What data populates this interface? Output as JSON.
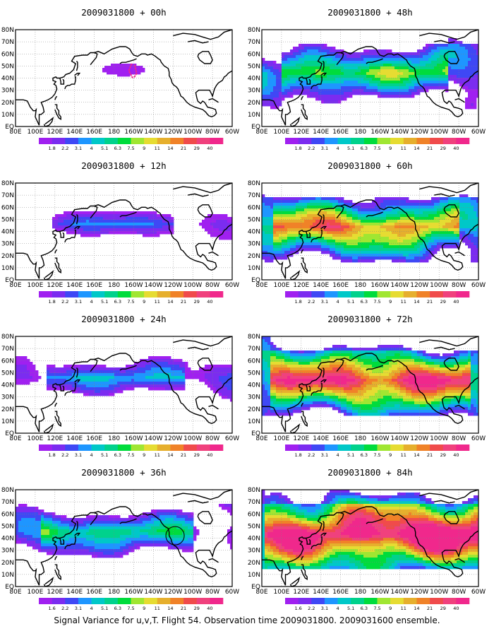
{
  "caption": "Signal Variance for u,v,T. Flight 54. Observation time 2009031800. 2009031600 ensemble.",
  "lon_labels": [
    "80E",
    "100E",
    "120E",
    "140E",
    "160E",
    "180",
    "160W",
    "140W",
    "120W",
    "100W",
    "80W",
    "60W"
  ],
  "lat_labels": [
    "80N",
    "70N",
    "60N",
    "50N",
    "40N",
    "30N",
    "20N",
    "10N",
    "EQ"
  ],
  "legend": {
    "levels": [
      "1.8",
      "2.2",
      "3.1",
      "4",
      "5.1",
      "6.3",
      "7.5",
      "9",
      "11",
      "14",
      "21",
      "29",
      "40"
    ],
    "levels_alt": [
      "1.6",
      "2.2",
      "3.1",
      "4",
      "5.1",
      "6.3",
      "7.5",
      "9",
      "11",
      "14",
      "21",
      "29",
      "40"
    ],
    "colors": [
      "#a020f0",
      "#7b2cf0",
      "#3f48f5",
      "#1e96ff",
      "#00c8c8",
      "#00d28c",
      "#00dc3c",
      "#a0e632",
      "#e6dc32",
      "#e6af2d",
      "#f08228",
      "#f04b4b",
      "#f0417d",
      "#f0288c"
    ]
  },
  "colors": {
    "coast": "#000000",
    "grid": "#808080",
    "track": "#f0288c",
    "background": "#ffffff"
  },
  "panels": [
    {
      "title": "2009031800 + 00h",
      "legend_labels": "levels",
      "intensity": 0.0
    },
    {
      "title": "2009031800 + 48h",
      "legend_labels": "levels",
      "intensity": 0.55
    },
    {
      "title": "2009031800 + 12h",
      "legend_labels": "levels",
      "intensity": 0.12
    },
    {
      "title": "2009031800 + 60h",
      "legend_labels": "levels",
      "intensity": 0.72
    },
    {
      "title": "2009031800 + 24h",
      "legend_labels": "levels",
      "intensity": 0.28
    },
    {
      "title": "2009031800 + 72h",
      "legend_labels": "levels",
      "intensity": 0.85
    },
    {
      "title": "2009031800 + 36h",
      "legend_labels": "levels_alt",
      "intensity": 0.42
    },
    {
      "title": "2009031800 + 84h",
      "legend_labels": "levels_alt",
      "intensity": 1.0
    }
  ]
}
